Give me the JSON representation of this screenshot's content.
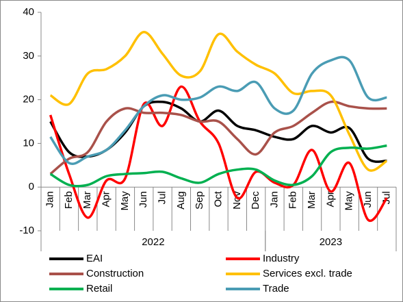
{
  "chart_data": {
    "type": "line",
    "categories": [
      "Jan",
      "Feb",
      "Mar",
      "Apr",
      "May",
      "Jun",
      "Jul",
      "Aug",
      "Sep",
      "Oct",
      "Nov",
      "Dec",
      "Jan",
      "Feb",
      "Mar",
      "Apr",
      "May",
      "Jun",
      "Jul"
    ],
    "groups": [
      {
        "label": "2022",
        "span": 12
      },
      {
        "label": "2023",
        "span": 7
      }
    ],
    "ylim": [
      -10,
      40
    ],
    "yticks": [
      -10,
      0,
      10,
      20,
      30,
      40
    ],
    "series": [
      {
        "name": "EAI",
        "color": "#000000",
        "values": [
          15,
          8,
          7,
          8.5,
          12.5,
          18.5,
          19.5,
          18,
          15,
          17.5,
          14,
          13,
          11.5,
          11,
          14,
          12.5,
          13.5,
          6.5,
          6
        ]
      },
      {
        "name": "Industry",
        "color": "#ff0000",
        "values": [
          16.5,
          3,
          -7,
          1.5,
          2,
          19,
          14,
          23,
          15,
          10,
          -2.5,
          3.5,
          1,
          0.5,
          8.5,
          -1,
          5.5,
          -7.5,
          -2.5
        ]
      },
      {
        "name": "Construction",
        "color": "#a9514a",
        "values": [
          3,
          6.5,
          8,
          15,
          18,
          17,
          17,
          16.5,
          15,
          15,
          11,
          7.5,
          12.5,
          14,
          17,
          19.5,
          18.5,
          18,
          18
        ]
      },
      {
        "name": "Services excl. trade",
        "color": "#ffc000",
        "values": [
          21,
          19,
          26,
          27,
          30,
          35.5,
          30.5,
          25.5,
          26.5,
          35,
          31,
          28,
          26,
          21.5,
          22,
          21,
          12,
          4,
          6
        ]
      },
      {
        "name": "Retail",
        "color": "#00b050",
        "values": [
          3,
          0.5,
          0.5,
          2.5,
          3,
          3.2,
          3.5,
          2,
          1,
          3,
          4,
          4,
          1.5,
          0.5,
          2.5,
          8,
          9,
          8.8,
          9.5
        ]
      },
      {
        "name": "Trade",
        "color": "#4a9cb4",
        "values": [
          11.5,
          5.5,
          7,
          8.5,
          13,
          18.5,
          21,
          20,
          20.5,
          23,
          22,
          24,
          18,
          17.5,
          26,
          29,
          29,
          20.5,
          20.5
        ]
      }
    ]
  }
}
